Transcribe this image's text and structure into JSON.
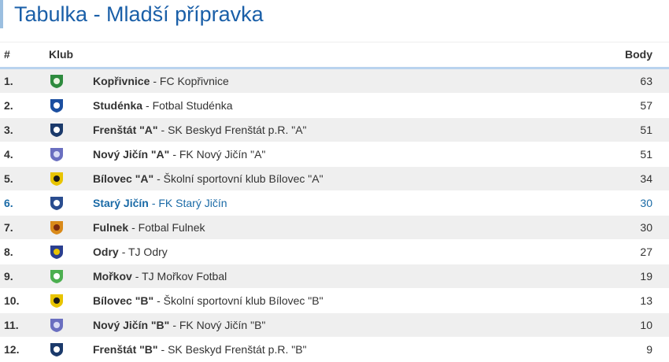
{
  "header": {
    "title": "Tabulka - Mladší přípravka"
  },
  "table": {
    "columns": [
      "#",
      "Klub",
      "Body"
    ],
    "rows": [
      {
        "rank": "1.",
        "team": "Kopřivnice",
        "club": "- FC Kopřivnice",
        "points": "63"
      },
      {
        "rank": "2.",
        "team": "Studénka",
        "club": "- Fotbal Studénka",
        "points": "57"
      },
      {
        "rank": "3.",
        "team": "Frenštát \"A\"",
        "club": "- SK Beskyd Frenštát p.R. \"A\"",
        "points": "51"
      },
      {
        "rank": "4.",
        "team": "Nový Jičín \"A\"",
        "club": "- FK Nový Jičín \"A\"",
        "points": "51"
      },
      {
        "rank": "5.",
        "team": "Bílovec \"A\"",
        "club": "- Školní sportovní klub Bílovec \"A\"",
        "points": "34"
      },
      {
        "rank": "6.",
        "team": "Starý Jičín",
        "club": "- FK Starý Jičín",
        "points": "30",
        "highlight": true
      },
      {
        "rank": "7.",
        "team": "Fulnek",
        "club": "- Fotbal Fulnek",
        "points": "30"
      },
      {
        "rank": "8.",
        "team": "Odry",
        "club": "- TJ Odry",
        "points": "27"
      },
      {
        "rank": "9.",
        "team": "Mořkov",
        "club": "- TJ Mořkov Fotbal",
        "points": "19"
      },
      {
        "rank": "10.",
        "team": "Bílovec \"B\"",
        "club": "- Školní sportovní klub Bílovec \"B\"",
        "points": "13"
      },
      {
        "rank": "11.",
        "team": "Nový Jičín \"B\"",
        "club": "- FK Nový Jičín \"B\"",
        "points": "10"
      },
      {
        "rank": "12.",
        "team": "Frenštát \"B\"",
        "club": "- SK Beskyd Frenštát p.R. \"B\"",
        "points": "9"
      }
    ]
  }
}
